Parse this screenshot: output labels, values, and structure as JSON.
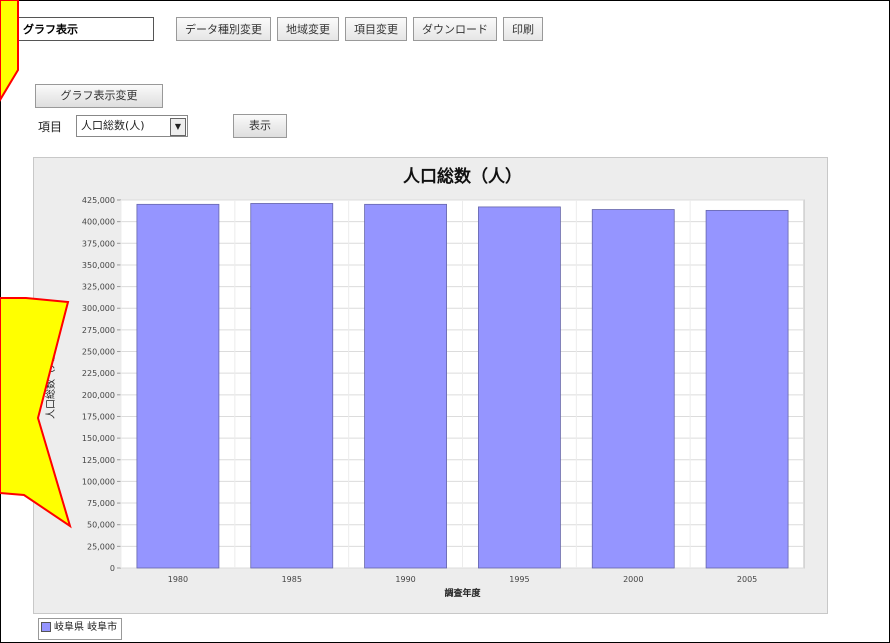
{
  "tabs": {
    "active": "グラフ表示",
    "items": [
      "データ種別変更",
      "地域変更",
      "項目変更",
      "ダウンロード",
      "印刷"
    ]
  },
  "controls": {
    "change_button": "グラフ表示変更",
    "item_label": "項目",
    "item_select_value": "人口総数(人)",
    "show_button": "表示"
  },
  "legend": {
    "label": "岐阜県 岐阜市"
  },
  "colors": {
    "bar": "#9595ff",
    "callout_fill": "#ffff00",
    "callout_stroke": "#ff0000"
  },
  "chart_data": {
    "type": "bar",
    "title": "人口総数（人）",
    "xlabel": "調査年度",
    "ylabel": "人口総数（人）",
    "categories": [
      "1980",
      "1985",
      "1990",
      "1995",
      "2000",
      "2005"
    ],
    "series": [
      {
        "name": "岐阜県 岐阜市",
        "values": [
          420000,
          421000,
          420000,
          417000,
          414000,
          413000
        ]
      }
    ],
    "ylim": [
      0,
      425000
    ],
    "yticks": [
      0,
      25000,
      50000,
      75000,
      100000,
      125000,
      150000,
      175000,
      200000,
      225000,
      250000,
      275000,
      300000,
      325000,
      350000,
      375000,
      400000,
      425000
    ],
    "ytick_labels": [
      "0",
      "25,000",
      "50,000",
      "75,000",
      "100,000",
      "125,000",
      "150,000",
      "175,000",
      "200,000",
      "225,000",
      "250,000",
      "275,000",
      "300,000",
      "325,000",
      "350,000",
      "375,000",
      "400,000",
      "425,000"
    ],
    "grid": true,
    "legend_position": "bottom-left"
  }
}
